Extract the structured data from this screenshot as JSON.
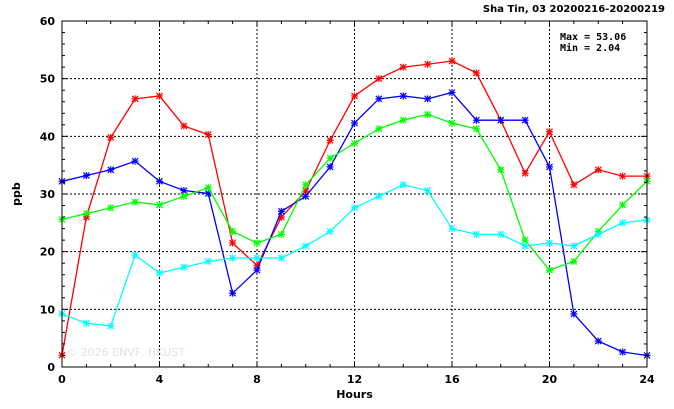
{
  "header": "Sha Tin, 03 20200216-20200219",
  "stats": {
    "max": "Max = 53.06",
    "min": "Min =  2.04"
  },
  "watermark": "© 2026 ENVF, HKUST",
  "chart_data": {
    "type": "line",
    "title": "",
    "xlabel": "Hours",
    "ylabel": "ppb",
    "xlim": [
      0,
      24
    ],
    "ylim": [
      0,
      60
    ],
    "xticks": [
      0,
      4,
      8,
      12,
      16,
      20,
      24
    ],
    "yticks": [
      0,
      10,
      20,
      30,
      40,
      50,
      60
    ],
    "grid": true,
    "x": [
      0,
      1,
      2,
      3,
      4,
      5,
      6,
      7,
      8,
      9,
      10,
      11,
      12,
      13,
      14,
      15,
      16,
      17,
      18,
      19,
      20,
      21,
      22,
      23,
      24
    ],
    "series": [
      {
        "color": "#ff0000",
        "values": [
          2.04,
          26.0,
          39.8,
          46.5,
          47.0,
          41.8,
          40.3,
          21.5,
          17.6,
          26.0,
          30.5,
          39.3,
          47.0,
          50.0,
          52.0,
          52.5,
          53.06,
          51.0,
          42.8,
          33.6,
          40.8,
          31.6,
          34.2,
          33.1,
          33.1
        ]
      },
      {
        "color": "#0000ff",
        "values": [
          32.2,
          33.2,
          34.2,
          35.7,
          32.2,
          30.6,
          30.1,
          12.8,
          16.8,
          27.0,
          29.6,
          34.7,
          42.3,
          46.5,
          47.0,
          46.5,
          47.6,
          42.8,
          42.8,
          42.8,
          34.7,
          9.2,
          4.5,
          2.6,
          2.0
        ]
      },
      {
        "color": "#00ff00",
        "values": [
          25.6,
          26.6,
          27.6,
          28.6,
          28.1,
          29.6,
          31.1,
          23.5,
          21.5,
          23.0,
          31.6,
          36.2,
          38.8,
          41.3,
          42.8,
          43.8,
          42.3,
          41.3,
          34.2,
          22.0,
          16.8,
          18.3,
          23.5,
          28.1,
          32.2
        ]
      },
      {
        "color": "#00ffff",
        "values": [
          9.2,
          7.6,
          7.1,
          19.4,
          16.3,
          17.3,
          18.3,
          18.9,
          18.9,
          18.9,
          21.0,
          23.5,
          27.6,
          29.6,
          31.6,
          30.6,
          24.0,
          23.0,
          23.0,
          21.0,
          21.5,
          21.0,
          23.0,
          25.0,
          25.5
        ]
      }
    ]
  }
}
